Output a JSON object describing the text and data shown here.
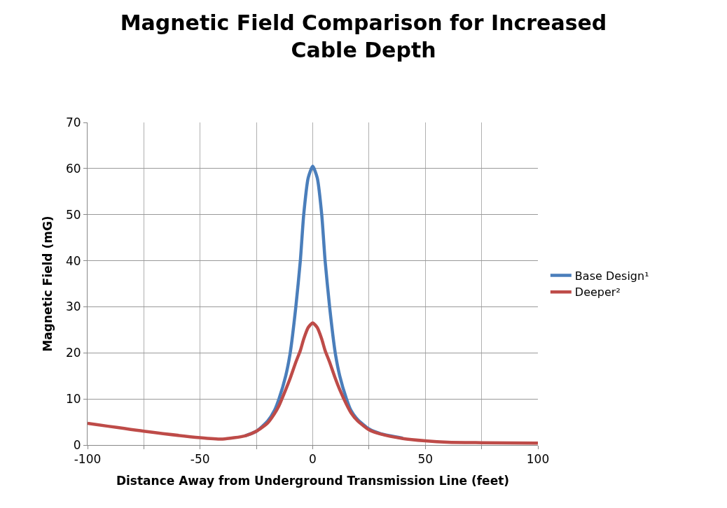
{
  "chart_data": {
    "type": "line",
    "title": "Magnetic Field Comparison for Increased Cable Depth",
    "xlabel": "Distance Away from Underground Transmission Line (feet)",
    "ylabel": "Magnetic Field (mG)",
    "x": [
      -100,
      -75,
      -50,
      -40,
      -30,
      -25,
      -20,
      -17,
      -15,
      -12,
      -10,
      -7.5,
      -5.5,
      -4,
      -2,
      0,
      2,
      4,
      5.5,
      7.5,
      10,
      12,
      15,
      17,
      20,
      25,
      30,
      40,
      50,
      60,
      75,
      100
    ],
    "series": [
      {
        "name": "Base Design¹",
        "color": "#4a7ebb",
        "values": [
          null,
          null,
          null,
          null,
          2.0,
          3.0,
          5.2,
          7.5,
          10,
          15,
          20,
          30,
          40,
          50,
          58,
          60.5,
          58,
          50,
          40,
          30,
          20,
          15,
          10,
          7.5,
          5.5,
          3.5,
          2.5,
          1.5,
          null,
          null,
          null,
          null
        ]
      },
      {
        "name": "Deeper²",
        "color": "#be4b48",
        "values": [
          4.7,
          3.0,
          1.6,
          1.3,
          2.0,
          3.0,
          4.8,
          6.8,
          8.5,
          12,
          14.5,
          18,
          20.5,
          23,
          25.5,
          26.5,
          25.5,
          23,
          20.5,
          18,
          14.5,
          12,
          8.8,
          7,
          5.2,
          3.3,
          2.4,
          1.4,
          0.9,
          0.6,
          0.5,
          0.4
        ]
      }
    ],
    "xlim": [
      -100,
      100
    ],
    "xticks": [
      -100,
      {
        "value": -75,
        "label": null
      },
      -50,
      {
        "value": -25,
        "label": null
      },
      0,
      {
        "value": 25,
        "label": null
      },
      50,
      {
        "value": 75,
        "label": null
      },
      100
    ],
    "ylim": [
      0,
      70
    ],
    "yticks": [
      0,
      10,
      20,
      30,
      40,
      50,
      60,
      70
    ],
    "grid": true,
    "legend": "right",
    "marker": "none",
    "line_style": "solid"
  }
}
